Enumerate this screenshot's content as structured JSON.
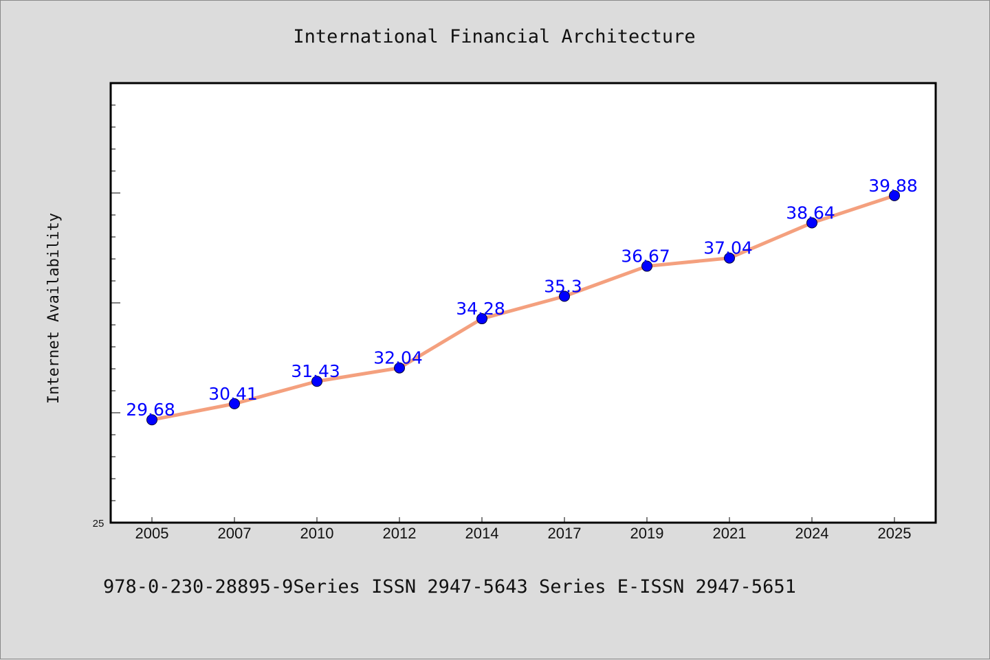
{
  "chart_data": {
    "type": "line",
    "title": "International Financial Architecture",
    "xlabel": "",
    "ylabel": "Internet Availability",
    "categories": [
      "2005",
      "2007",
      "2010",
      "2012",
      "2014",
      "2017",
      "2019",
      "2021",
      "2024",
      "2025"
    ],
    "series": [
      {
        "values": [
          29.68,
          30.41,
          31.43,
          32.04,
          34.28,
          35.3,
          36.67,
          37.04,
          38.64,
          39.88
        ]
      }
    ],
    "ylim": [
      25,
      45
    ],
    "y_tick_labels": [
      "25"
    ],
    "grid": false,
    "legend": "none",
    "colors": {
      "line": "#f4a07e",
      "marker": "#0000ff",
      "data_label": "#0000ff"
    }
  },
  "footer": {
    "text": "978-0-230-28895-9Series ISSN 2947-5643 Series E-ISSN 2947-5651"
  }
}
